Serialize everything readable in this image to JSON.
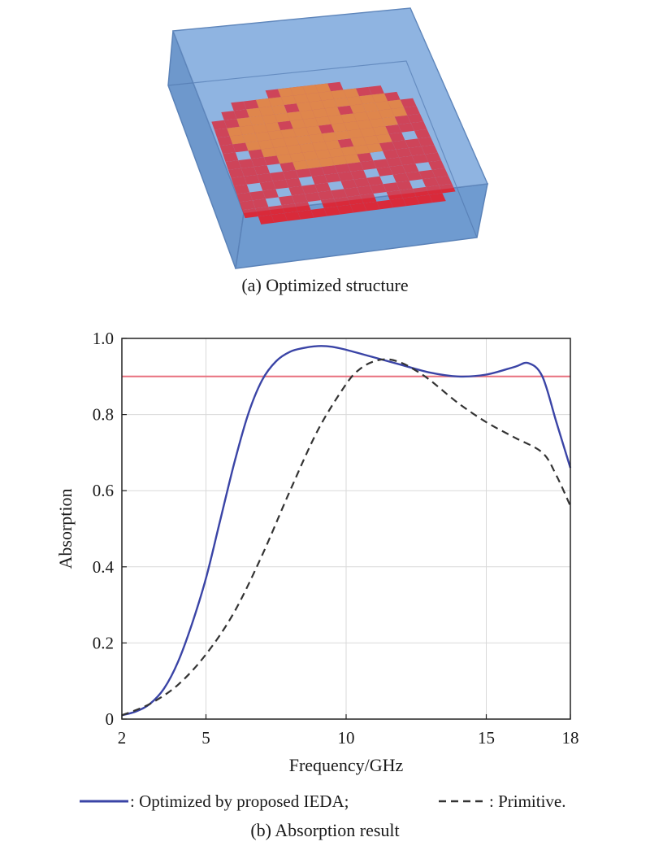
{
  "caption_a": "(a) Optimized structure",
  "caption_b": "(b) Absorption result",
  "structure": {
    "substrate_color": "#7fa6d6",
    "red_layer_color": "#d92a3a",
    "orange_layer_color": "#ee7a2a"
  },
  "chart_data": {
    "type": "line",
    "xlabel": "Frequency/GHz",
    "ylabel": "Absorption",
    "xlim": [
      2,
      18
    ],
    "ylim": [
      0,
      1.0
    ],
    "xticks": [
      2,
      5,
      10,
      15,
      18
    ],
    "xtick_labels": [
      "2",
      "5",
      "10",
      "15",
      "18"
    ],
    "yticks": [
      0,
      0.2,
      0.4,
      0.6,
      0.8,
      1.0
    ],
    "ytick_labels": [
      "0",
      "0.2",
      "0.4",
      "0.6",
      "0.8",
      "1.0"
    ],
    "grid": true,
    "threshold": {
      "y": 0.9,
      "color": "#e8707e"
    },
    "series": [
      {
        "name": ": Optimized by proposed IEDA;",
        "color": "#3a44a6",
        "style": "solid",
        "x": [
          2,
          2.5,
          3,
          3.5,
          4,
          4.5,
          5,
          5.5,
          6,
          6.5,
          7,
          7.5,
          8,
          8.5,
          9,
          9.5,
          10,
          11,
          12,
          13,
          14,
          15,
          16,
          16.5,
          17,
          17.5,
          18
        ],
        "y": [
          0.01,
          0.02,
          0.04,
          0.08,
          0.15,
          0.25,
          0.37,
          0.52,
          0.67,
          0.8,
          0.89,
          0.94,
          0.965,
          0.975,
          0.98,
          0.978,
          0.97,
          0.95,
          0.93,
          0.91,
          0.9,
          0.905,
          0.925,
          0.935,
          0.9,
          0.78,
          0.66
        ]
      },
      {
        "name": ": Primitive.",
        "color": "#333333",
        "style": "dashed",
        "x": [
          2,
          3,
          4,
          5,
          6,
          7,
          8,
          9,
          10,
          10.5,
          11,
          11.5,
          12,
          12.5,
          13,
          14,
          15,
          16,
          17,
          17.5,
          18
        ],
        "y": [
          0.01,
          0.04,
          0.09,
          0.17,
          0.28,
          0.43,
          0.6,
          0.76,
          0.88,
          0.92,
          0.94,
          0.945,
          0.935,
          0.915,
          0.89,
          0.83,
          0.78,
          0.74,
          0.7,
          0.64,
          0.56
        ]
      }
    ]
  }
}
